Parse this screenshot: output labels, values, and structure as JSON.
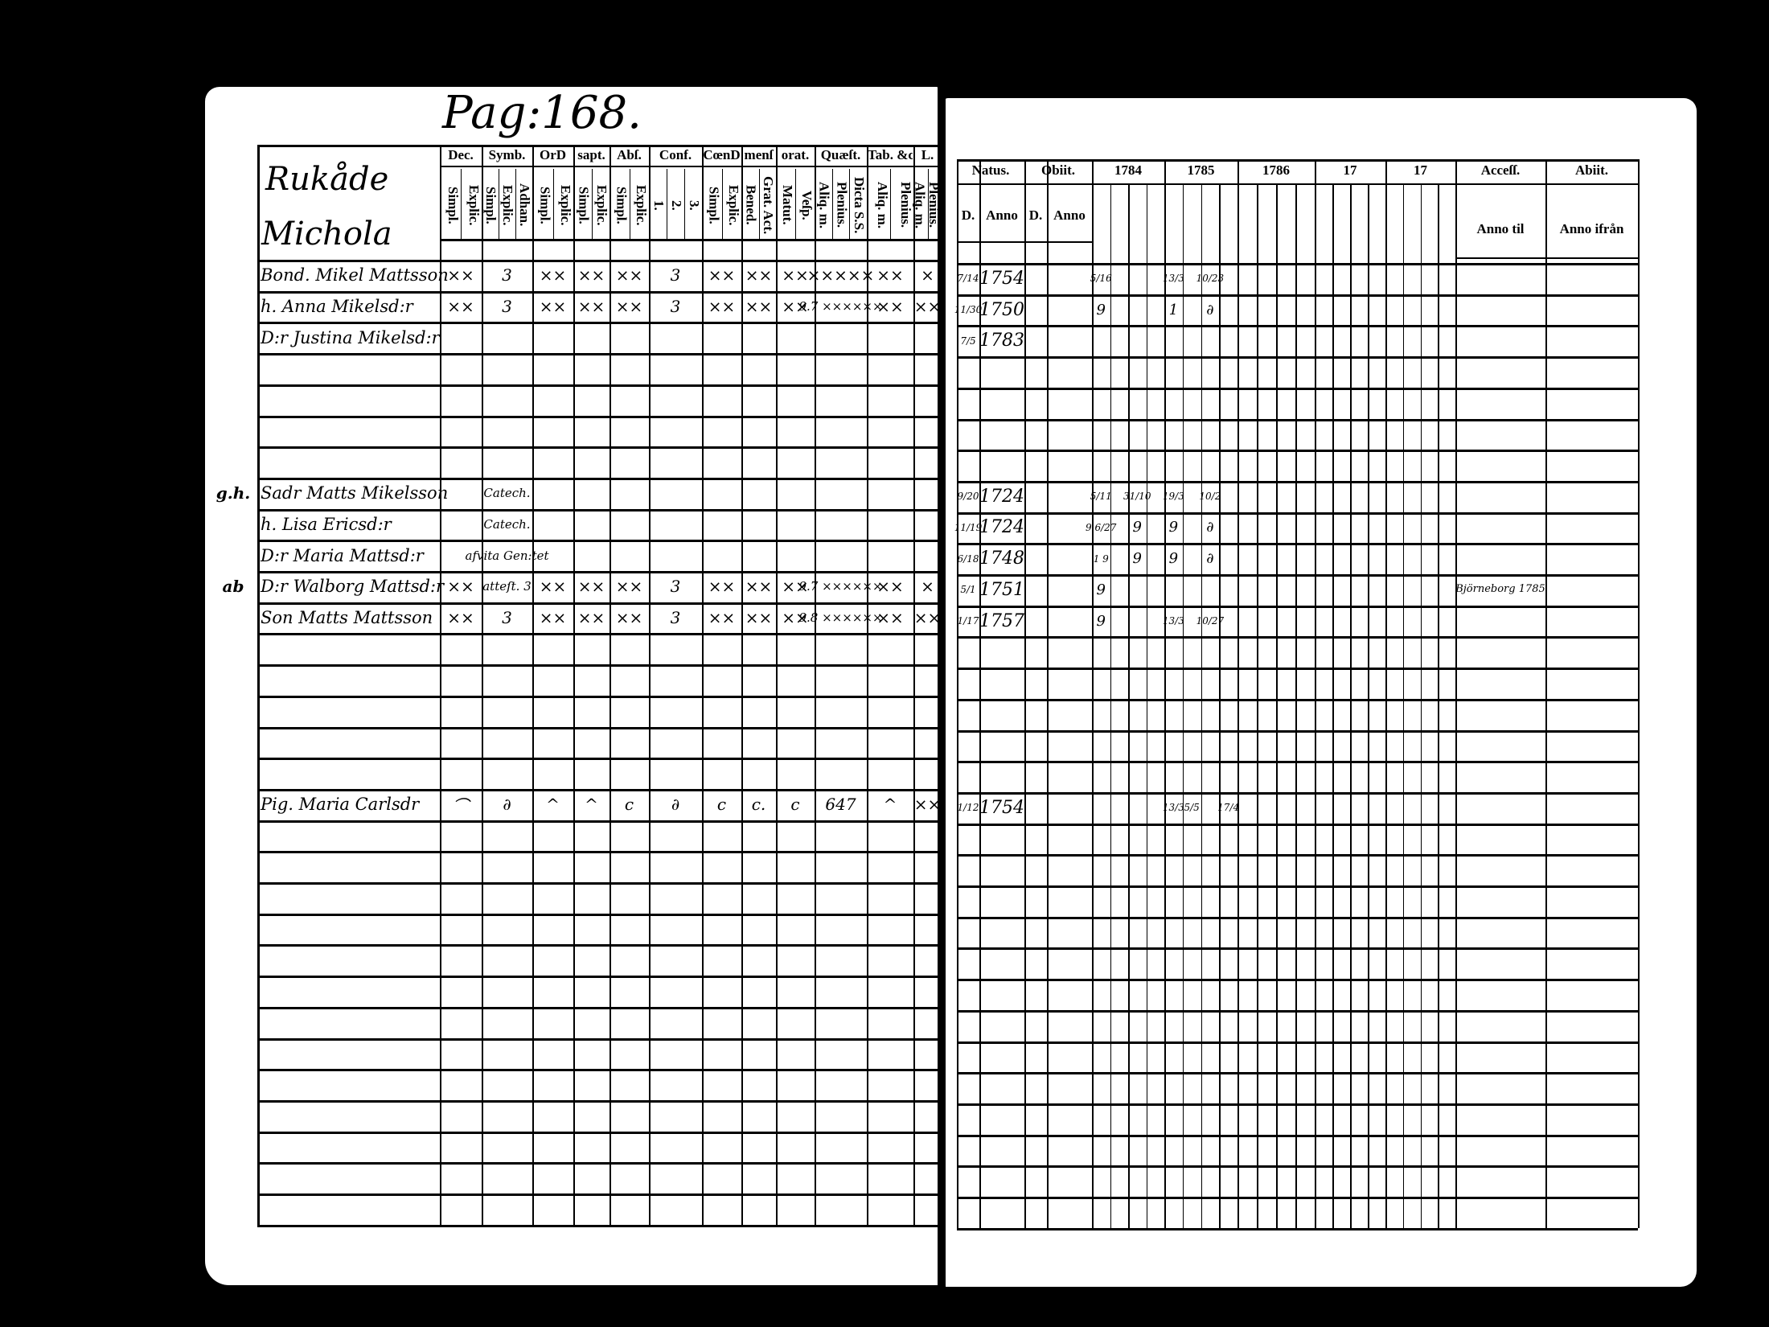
{
  "page_number": "Pag:168.",
  "left": {
    "village": "Rukåde",
    "farm": "Michola",
    "groups": [
      {
        "label": "Dec.",
        "subs": [
          "Simpl.",
          "Explic."
        ]
      },
      {
        "label": "Symb.",
        "subs": [
          "Simpl.",
          "Explic.",
          "Adhan."
        ]
      },
      {
        "label": "OrD",
        "subs": [
          "Simpl.",
          "Explic."
        ]
      },
      {
        "label": "sapt.",
        "subs": [
          "Simpl.",
          "Explic."
        ]
      },
      {
        "label": "Abſ.",
        "subs": [
          "Simpl.",
          "Explic."
        ]
      },
      {
        "label": "Conf.",
        "subs": [
          "1.",
          "2.",
          "3."
        ]
      },
      {
        "label": "CœnD",
        "subs": [
          "Simpl.",
          "Explic."
        ]
      },
      {
        "label": "menſ",
        "subs": [
          "Bened.",
          "Grat. Act."
        ]
      },
      {
        "label": "orat.",
        "subs": [
          "Matut.",
          "Veſp."
        ]
      },
      {
        "label": "Quæſt.",
        "subs": [
          "Aliq. m.",
          "Plenius.",
          "Dicta S.S."
        ]
      },
      {
        "label": "Tab. &c.",
        "subs": [
          "Aliq. m.",
          "Plenius."
        ]
      },
      {
        "label": "L.",
        "subs": [
          "Aliq. m.",
          "Plenius."
        ]
      }
    ],
    "rows": [
      {
        "row": 0,
        "margin": "",
        "name": "Bond. Mikel Mattsson",
        "marks": [
          "××",
          "3",
          "××",
          "××",
          "××",
          "3",
          "××",
          "××",
          "××",
          "×××××",
          "××",
          "×"
        ]
      },
      {
        "row": 1,
        "margin": "",
        "name": "h. Anna Mikelsd:r",
        "marks": [
          "××",
          "3",
          "××",
          "××",
          "××",
          "3",
          "××",
          "××",
          "××",
          "9.7 ××××××",
          "××",
          "××"
        ]
      },
      {
        "row": 2,
        "margin": "",
        "name": "D:r Justina Mikelsd:r",
        "marks": [
          "",
          "",
          "",
          "",
          "",
          "",
          "",
          "",
          "",
          "",
          "",
          ""
        ]
      },
      {
        "row": 7,
        "margin": "g.h.",
        "name": "Sadr Matts Mikelsson",
        "marks": [
          "",
          "Catech.",
          "",
          "",
          "",
          "",
          "",
          "",
          "",
          "",
          "",
          ""
        ]
      },
      {
        "row": 8,
        "margin": "",
        "name": "h. Lisa Ericsd:r",
        "marks": [
          "",
          "Catech.",
          "",
          "",
          "",
          "",
          "",
          "",
          "",
          "",
          "",
          ""
        ]
      },
      {
        "row": 9,
        "margin": "",
        "name": "D:r Maria Mattsd:r",
        "marks": [
          "",
          "afvita Gen:tet",
          "",
          "",
          "",
          "",
          "",
          "",
          "",
          "",
          "",
          ""
        ]
      },
      {
        "row": 10,
        "margin": "ab",
        "name": "D:r Walborg Mattsd:r",
        "marks": [
          "××",
          "atteſt. 3",
          "××",
          "××",
          "××",
          "3",
          "××",
          "××",
          "××",
          "9.7 ××××××",
          "××",
          "×"
        ]
      },
      {
        "row": 11,
        "margin": "",
        "name": "Son Matts Mattsson",
        "marks": [
          "××",
          "3",
          "××",
          "××",
          "××",
          "3",
          "××",
          "××",
          "××",
          "9.8 ××××××",
          "××",
          "××"
        ]
      },
      {
        "row": 17,
        "margin": "",
        "name": "Pig. Maria Carlsdr",
        "marks": [
          "⌒",
          "∂",
          "^",
          "^",
          "c",
          "∂",
          "c",
          "c.",
          "c",
          "647",
          "^",
          "××"
        ]
      }
    ]
  },
  "right": {
    "natus": {
      "label": "Natus.",
      "subs": [
        "D.",
        "Anno"
      ]
    },
    "obiit": {
      "label": "Obiit.",
      "subs": [
        "D.",
        "Anno"
      ]
    },
    "years": [
      "1784",
      "1785",
      "1786",
      "17",
      "17"
    ],
    "accessit": {
      "label": "Acceſſ.",
      "sub": "Anno til"
    },
    "abiit": {
      "label": "Abiit.",
      "sub": "Anno ifrån"
    },
    "rows": [
      {
        "row": 0,
        "day": "7/14",
        "year": "1754",
        "marks": [
          {
            "col": 0,
            "text": "5/16"
          },
          {
            "col": 4,
            "text": "13/3"
          },
          {
            "col": 6,
            "text": "10/23"
          }
        ],
        "accessit": ""
      },
      {
        "row": 1,
        "day": "11/30",
        "year": "1750",
        "marks": [
          {
            "col": 0,
            "text": "9"
          },
          {
            "col": 4,
            "text": "1"
          },
          {
            "col": 6,
            "text": "∂"
          }
        ],
        "accessit": ""
      },
      {
        "row": 2,
        "day": "7/5",
        "year": "1783",
        "marks": [],
        "accessit": ""
      },
      {
        "row": 7,
        "day": "9/20",
        "year": "1724",
        "marks": [
          {
            "col": 0,
            "text": "5/11"
          },
          {
            "col": 2,
            "text": "31/10"
          },
          {
            "col": 4,
            "text": "19/3"
          },
          {
            "col": 6,
            "text": "10/2"
          }
        ],
        "accessit": ""
      },
      {
        "row": 8,
        "day": "11/19",
        "year": "1724",
        "marks": [
          {
            "col": 0,
            "text": "9 6/27"
          },
          {
            "col": 2,
            "text": "9"
          },
          {
            "col": 4,
            "text": "9"
          },
          {
            "col": 6,
            "text": "∂"
          }
        ],
        "accessit": ""
      },
      {
        "row": 9,
        "day": "6/18",
        "year": "1748",
        "marks": [
          {
            "col": 0,
            "text": "1 9"
          },
          {
            "col": 2,
            "text": "9"
          },
          {
            "col": 4,
            "text": "9"
          },
          {
            "col": 6,
            "text": "∂"
          }
        ],
        "accessit": ""
      },
      {
        "row": 10,
        "day": "5/1",
        "year": "1751",
        "marks": [
          {
            "col": 0,
            "text": "9"
          }
        ],
        "accessit": "Björneborg 1785"
      },
      {
        "row": 11,
        "day": "1/17",
        "year": "1757",
        "marks": [
          {
            "col": 0,
            "text": "9"
          },
          {
            "col": 4,
            "text": "13/3"
          },
          {
            "col": 6,
            "text": "10/27"
          }
        ],
        "accessit": ""
      },
      {
        "row": 17,
        "day": "1/12",
        "year": "1754",
        "marks": [
          {
            "col": 4,
            "text": "13/3"
          },
          {
            "col": 5,
            "text": "5/5"
          },
          {
            "col": 7,
            "text": "17/4"
          }
        ],
        "accessit": ""
      }
    ]
  },
  "colors": {
    "ink": "#000000",
    "paper": "#ffffff",
    "background": "#000000"
  }
}
